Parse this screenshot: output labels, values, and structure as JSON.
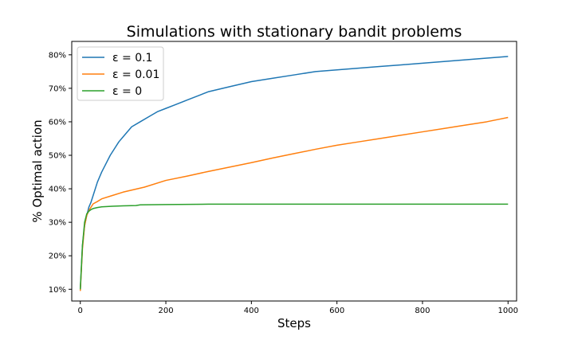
{
  "chart_data": {
    "type": "line",
    "title": "Simulations with stationary bandit problems",
    "xlabel": "Steps",
    "ylabel": "% Optimal action",
    "xlim": [
      -20,
      1020
    ],
    "ylim": [
      0.065,
      0.84
    ],
    "xticks": [
      0,
      200,
      400,
      600,
      800,
      1000
    ],
    "xtick_labels": [
      "0",
      "200",
      "400",
      "600",
      "800",
      "1000"
    ],
    "yticks": [
      0.1,
      0.2,
      0.3,
      0.4,
      0.5,
      0.6,
      0.7,
      0.8
    ],
    "ytick_labels": [
      "10%",
      "20%",
      "30%",
      "40%",
      "50%",
      "60%",
      "70%",
      "80%"
    ],
    "grid": false,
    "legend_position": "top-left",
    "series": [
      {
        "name": "ε = 0.1",
        "legend_label": "ε = 0.1",
        "color": "#1f77b4",
        "x": [
          0,
          5,
          10,
          15,
          20,
          25,
          30,
          40,
          50,
          60,
          70,
          80,
          90,
          100,
          120,
          140,
          160,
          180,
          200,
          220,
          250,
          280,
          300,
          350,
          400,
          450,
          500,
          550,
          600,
          650,
          700,
          750,
          800,
          850,
          900,
          950,
          1000
        ],
        "y": [
          0.1,
          0.23,
          0.29,
          0.32,
          0.345,
          0.36,
          0.38,
          0.42,
          0.45,
          0.475,
          0.5,
          0.52,
          0.54,
          0.555,
          0.585,
          0.6,
          0.615,
          0.63,
          0.64,
          0.65,
          0.665,
          0.68,
          0.69,
          0.705,
          0.72,
          0.73,
          0.74,
          0.75,
          0.755,
          0.76,
          0.765,
          0.77,
          0.775,
          0.78,
          0.785,
          0.79,
          0.795
        ]
      },
      {
        "name": "ε = 0.01",
        "legend_label": "ε = 0.01",
        "color": "#ff7f0e",
        "x": [
          0,
          5,
          10,
          15,
          20,
          25,
          30,
          40,
          50,
          75,
          100,
          150,
          200,
          250,
          300,
          350,
          400,
          450,
          500,
          550,
          600,
          650,
          700,
          750,
          800,
          850,
          900,
          950,
          1000
        ],
        "y": [
          0.095,
          0.22,
          0.29,
          0.32,
          0.335,
          0.345,
          0.355,
          0.362,
          0.37,
          0.38,
          0.39,
          0.405,
          0.425,
          0.438,
          0.452,
          0.465,
          0.478,
          0.492,
          0.505,
          0.518,
          0.53,
          0.54,
          0.55,
          0.56,
          0.57,
          0.58,
          0.59,
          0.6,
          0.613
        ]
      },
      {
        "name": "ε = 0",
        "legend_label": "ε = 0",
        "color": "#2ca02c",
        "x": [
          0,
          5,
          10,
          15,
          20,
          25,
          30,
          40,
          50,
          75,
          100,
          130,
          140,
          200,
          300,
          400,
          600,
          800,
          1000
        ],
        "y": [
          0.1,
          0.23,
          0.3,
          0.325,
          0.333,
          0.338,
          0.341,
          0.344,
          0.346,
          0.348,
          0.349,
          0.35,
          0.352,
          0.353,
          0.354,
          0.354,
          0.354,
          0.354,
          0.354
        ]
      }
    ]
  }
}
